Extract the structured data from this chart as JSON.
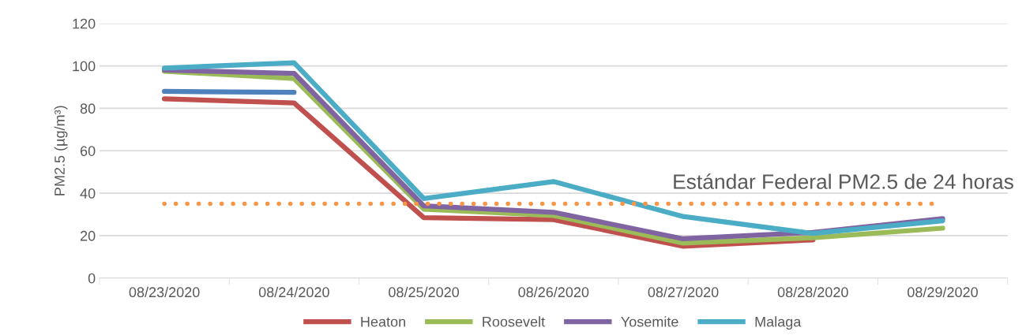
{
  "chart_data": {
    "type": "line",
    "ylabel": "PM2.5 (µg/m³)",
    "categories": [
      "08/23/2020",
      "08/24/2020",
      "08/25/2020",
      "08/26/2020",
      "08/27/2020",
      "08/28/2020",
      "08/29/2020"
    ],
    "series": [
      {
        "color": "#4f81bd",
        "values": [
          88,
          87.5,
          null,
          null,
          null,
          null,
          null
        ]
      },
      {
        "name": "Heaton",
        "color": "#c0504d",
        "values": [
          84.5,
          82.5,
          28.5,
          27.5,
          15,
          18,
          null
        ]
      },
      {
        "name": "Roosevelt",
        "color": "#9bbb59",
        "values": [
          97.5,
          94,
          32.5,
          29.5,
          16.5,
          19,
          23.5
        ]
      },
      {
        "name": "Yosemite",
        "color": "#8064a2",
        "values": [
          98,
          96.5,
          34,
          31,
          18.5,
          21.5,
          28
        ]
      },
      {
        "name": "Malaga",
        "color": "#4bacc6",
        "values": [
          99,
          101.5,
          37.5,
          45.5,
          29,
          21,
          27
        ]
      }
    ],
    "ref_lines": [
      {
        "axis": "y",
        "value": 35,
        "label": "Estándar Federal PM2.5 de 24 horas",
        "color": "#f79646",
        "line_style": "dotted"
      }
    ],
    "ylim": [
      0,
      120
    ],
    "yticks": [
      0,
      20,
      40,
      60,
      80,
      100,
      120
    ],
    "grid": "y",
    "legend": "bottom",
    "marker": "none",
    "line_style": "solid"
  }
}
